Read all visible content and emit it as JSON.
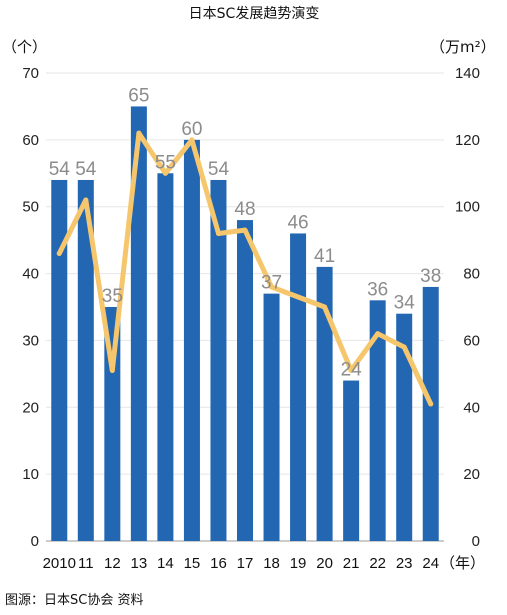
{
  "chart_data": {
    "type": "bar",
    "title": "日本SC发展趋势演变",
    "left_unit": "（个）",
    "right_unit": "（万m²）",
    "x_unit": "（年）",
    "source": "图源：日本SC协会  资料",
    "categories": [
      "2010",
      "11",
      "12",
      "13",
      "14",
      "15",
      "16",
      "17",
      "18",
      "19",
      "20",
      "21",
      "22",
      "23",
      "24"
    ],
    "y_left": {
      "min": 0,
      "max": 70,
      "ticks": [
        "0",
        "10",
        "20",
        "30",
        "40",
        "50",
        "60",
        "70"
      ]
    },
    "y_right": {
      "min": 0,
      "max": 140,
      "ticks": [
        "0",
        "20",
        "40",
        "60",
        "80",
        "100",
        "120",
        "140"
      ]
    },
    "grid": true,
    "series": [
      {
        "kind": "bar",
        "axis": "left",
        "color": "#2366b2",
        "values": [
          54,
          54,
          35,
          65,
          55,
          60,
          54,
          48,
          37,
          46,
          41,
          24,
          36,
          34,
          38
        ],
        "data_labels": [
          "54",
          "54",
          "35",
          "65",
          "55",
          "60",
          "54",
          "48",
          "37",
          "46",
          "41",
          "24",
          "36",
          "34",
          "38"
        ]
      },
      {
        "kind": "line",
        "axis": "right",
        "color": "#f6c66c",
        "values": [
          86,
          102,
          51,
          122,
          110,
          120,
          92,
          93,
          76,
          73,
          70,
          51,
          62,
          58,
          41
        ]
      }
    ]
  }
}
